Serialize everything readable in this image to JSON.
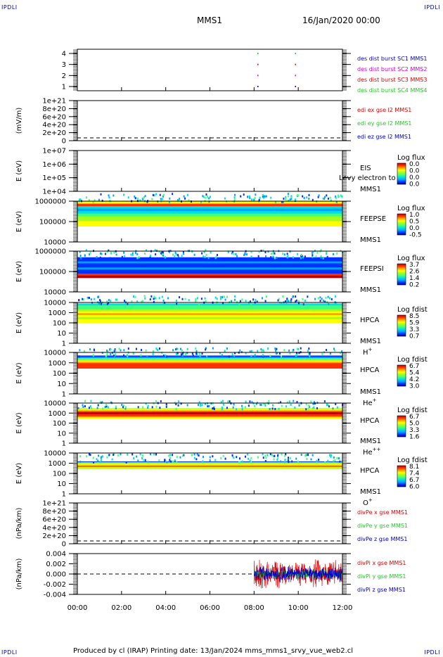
{
  "corners": {
    "tl": "IPDLI",
    "tr": "IPDLI",
    "bl": "IPDLI",
    "br": "IPDLI"
  },
  "header": {
    "mission": "MMS1",
    "date": "16/Jan/2020 00:00"
  },
  "footer": "Produced by cl (IRAP)   Printing date: 13/Jan/2024   mms_mms1_srvy_vue_web2.cl",
  "colors": {
    "red": "#e00000",
    "green": "#22cc22",
    "blue": "#0000c8",
    "magenta": "#d000d0"
  },
  "time_axis": {
    "ticks": [
      "00:00",
      "02:00",
      "04:00",
      "06:00",
      "08:00",
      "10:00",
      "12:00"
    ]
  },
  "panels": [
    {
      "id": "burst",
      "ylabel": "",
      "yticks": [
        "4",
        "3",
        "2",
        "1"
      ],
      "legend": [
        {
          "text": "des dist burst SC1 MMS1",
          "color": "#0000c8"
        },
        {
          "text": "des dist burst SC2 MMS2",
          "color": "#d000d0"
        },
        {
          "text": "des dist burst SC3 MMS3",
          "color": "#e00000"
        },
        {
          "text": "des dist burst SC4 MMS4",
          "color": "#22cc22"
        }
      ]
    },
    {
      "id": "edi",
      "ylabel": "(mV/m)",
      "yticks": [
        "1e+21",
        "8e+20",
        "6e+20",
        "4e+20",
        "2e+20",
        "0"
      ],
      "legend": [
        {
          "text": "edi ex gse l2 MMS1",
          "color": "#e00000"
        },
        {
          "text": "edi ey gse l2 MMS1",
          "color": "#22cc22"
        },
        {
          "text": "edi ez gse l2 MMS1",
          "color": "#0000c8"
        }
      ]
    },
    {
      "id": "eis",
      "ylabel": "E (eV)",
      "yticks": [
        "1e+07",
        "1e+06",
        "1e+05",
        "1e+04"
      ],
      "label": [
        "EIS",
        "MMS1"
      ],
      "overlay": "Levy electron to",
      "cbar_title": "Log flux",
      "cbar_ticks": [
        "0.0",
        "0.0",
        "0.0",
        "0.0"
      ]
    },
    {
      "id": "feepse",
      "ylabel": "E (eV)",
      "yticks": [
        "1000000",
        "100000",
        "10000"
      ],
      "label": [
        "FEEPSE",
        "MMS1"
      ],
      "cbar_title": "Log flux",
      "cbar_ticks": [
        "1.0",
        "0.5",
        "0.0",
        "-0.5"
      ]
    },
    {
      "id": "feepsi",
      "ylabel": "E (eV)",
      "yticks": [
        "1000000",
        "100000",
        "10000"
      ],
      "label": [
        "FEEPSI",
        "MMS1"
      ],
      "cbar_title": "Log flux",
      "cbar_ticks": [
        "3.7",
        "2.6",
        "1.4",
        "0.2"
      ]
    },
    {
      "id": "hpca_h",
      "ylabel": "E (eV)",
      "yticks": [
        "10000",
        "1000",
        "100",
        "10",
        "1"
      ],
      "label": [
        "HPCA",
        "MMS1",
        "H"
      ],
      "species_sup": "+",
      "cbar_title": "Log fdist",
      "cbar_ticks": [
        "8.5",
        "5.9",
        "3.3",
        "0.7"
      ]
    },
    {
      "id": "hpca_he",
      "ylabel": "E (eV)",
      "yticks": [
        "10000",
        "1000",
        "100",
        "10",
        "1"
      ],
      "label": [
        "HPCA",
        "MMS1",
        "He"
      ],
      "species_sup": "+",
      "cbar_title": "Log fdist",
      "cbar_ticks": [
        "6.7",
        "5.4",
        "4.2",
        "3.0"
      ]
    },
    {
      "id": "hpca_hepp",
      "ylabel": "E (eV)",
      "yticks": [
        "10000",
        "1000",
        "100",
        "10",
        "1"
      ],
      "label": [
        "HPCA",
        "MMS1",
        "He"
      ],
      "species_sup": "++",
      "cbar_title": "Log fdist",
      "cbar_ticks": [
        "6.7",
        "5.0",
        "3.3",
        "1.6"
      ]
    },
    {
      "id": "hpca_o",
      "ylabel": "E (eV)",
      "yticks": [
        "10000",
        "1000",
        "100",
        "10",
        "1"
      ],
      "label": [
        "HPCA",
        "MMS1",
        "O"
      ],
      "species_sup": "+",
      "cbar_title": "Log fdist",
      "cbar_ticks": [
        "8.1",
        "7.4",
        "6.7",
        "6.0"
      ]
    },
    {
      "id": "divpe",
      "ylabel": "(nPa/km)",
      "yticks": [
        "1e+21",
        "8e+20",
        "6e+20",
        "4e+20",
        "2e+20",
        "0"
      ],
      "legend": [
        {
          "text": "divPe x gse MMS1",
          "color": "#e00000"
        },
        {
          "text": "divPe y gse MMS1",
          "color": "#22cc22"
        },
        {
          "text": "divPe z gse MMS1",
          "color": "#0000c8"
        }
      ]
    },
    {
      "id": "divpi",
      "ylabel": "(nPa/km)",
      "yticks": [
        "0.004",
        "0.002",
        "0.000",
        "-0.002",
        "-0.004"
      ],
      "legend": [
        {
          "text": "divPi x gse MMS1",
          "color": "#e00000"
        },
        {
          "text": "divPi y gse MMS1",
          "color": "#22cc22"
        },
        {
          "text": "divPi z gse MMS1",
          "color": "#0000c8"
        }
      ]
    }
  ],
  "chart_data": {
    "type": "heatmap",
    "x_unit": "hours UT",
    "x_range": [
      0,
      12
    ],
    "burst_intervals": [
      {
        "start": 8.15,
        "end": 8.2
      },
      {
        "start": 9.85,
        "end": 9.9
      }
    ],
    "divpi_active_range": [
      8.0,
      12.0
    ],
    "spectrograms": [
      {
        "id": "feepse",
        "ylim": [
          10000,
          1000000
        ],
        "band": [
          60000,
          1000000
        ]
      },
      {
        "id": "feepsi",
        "ylim": [
          10000,
          1000000
        ],
        "band": [
          50000,
          500000
        ]
      },
      {
        "id": "hpca_h",
        "ylim": [
          1,
          10000
        ],
        "band": [
          100,
          8000
        ]
      },
      {
        "id": "hpca_he",
        "ylim": [
          1,
          10000
        ],
        "band": [
          300,
          5000
        ]
      },
      {
        "id": "hpca_hepp",
        "ylim": [
          1,
          10000
        ],
        "band": [
          300,
          3000
        ]
      },
      {
        "id": "hpca_o",
        "ylim": [
          1,
          10000
        ],
        "band": [
          300,
          1500
        ]
      }
    ]
  }
}
